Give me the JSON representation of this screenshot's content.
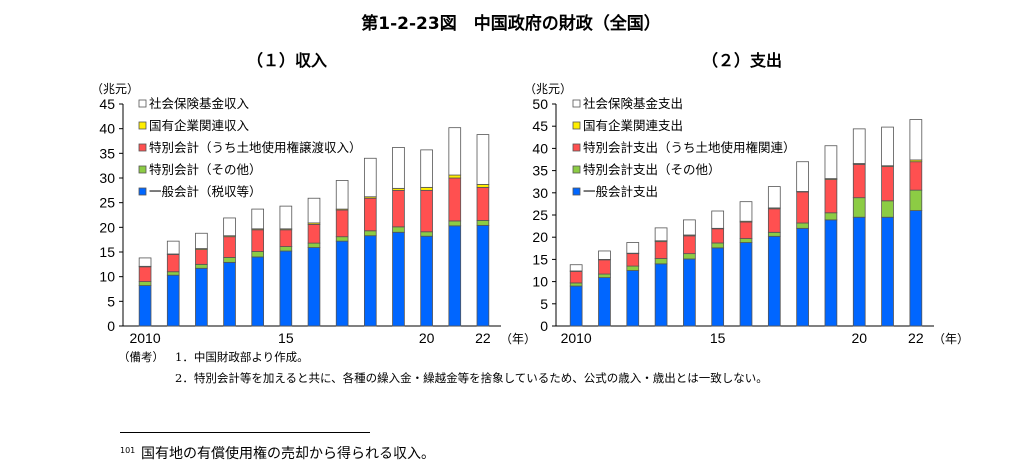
{
  "title": "第1-2-23図　中国政府の財政（全国）",
  "notes": {
    "label": "（備考）",
    "items": [
      "1．中国財政部より作成。",
      "2．特別会計等を加えると共に、各種の繰入金・繰越金等を捨象しているため、公式の歳入・歳出とは一致しない。"
    ]
  },
  "footnote": {
    "number": "101",
    "text": "国有地の有償使用権の売却から得られる収入。"
  },
  "chart_data": [
    {
      "type": "bar",
      "stacked": true,
      "title": "（１）収入",
      "ylabel": "（兆元）",
      "xlabel": "（年）",
      "ylim": [
        0,
        45
      ],
      "yticks": [
        0,
        5,
        10,
        15,
        20,
        25,
        30,
        35,
        40,
        45
      ],
      "categories": [
        "2010",
        "2011",
        "2012",
        "2013",
        "2014",
        "2015",
        "2016",
        "2017",
        "2018",
        "2019",
        "2020",
        "2021",
        "2022"
      ],
      "xtick_labels": {
        "0": "2010",
        "5": "15",
        "10": "20",
        "12": "22"
      },
      "legend_position": "top-left",
      "series": [
        {
          "name": "一般会計（税収等）",
          "color": "#0066ff",
          "values": [
            8.2,
            10.3,
            11.7,
            12.9,
            14.0,
            15.2,
            15.9,
            17.2,
            18.3,
            19.0,
            18.2,
            20.3,
            20.4
          ]
        },
        {
          "name": "特別会計（その他）",
          "color": "#8ccc44",
          "values": [
            0.8,
            0.7,
            0.8,
            1.0,
            1.1,
            0.9,
            0.9,
            0.9,
            1.0,
            1.1,
            0.9,
            1.0,
            1.0
          ]
        },
        {
          "name": "特別会計（うち土地使用権譲渡収入）",
          "color": "#ff5050",
          "values": [
            3.0,
            3.5,
            3.0,
            4.2,
            4.4,
            3.4,
            3.8,
            5.4,
            6.6,
            7.4,
            8.4,
            8.7,
            6.7
          ]
        },
        {
          "name": "国有企業関連収入",
          "color": "#ffee00",
          "values": [
            0.1,
            0.1,
            0.2,
            0.2,
            0.2,
            0.2,
            0.3,
            0.2,
            0.3,
            0.4,
            0.6,
            0.6,
            0.6
          ]
        },
        {
          "name": "社会保険基金収入",
          "color": "#ffffff",
          "values": [
            1.7,
            2.6,
            3.1,
            3.6,
            4.0,
            4.6,
            5.0,
            5.8,
            7.8,
            8.3,
            7.6,
            9.6,
            10.1
          ]
        }
      ]
    },
    {
      "type": "bar",
      "stacked": true,
      "title": "（２）支出",
      "ylabel": "（兆元）",
      "xlabel": "（年）",
      "ylim": [
        0,
        50
      ],
      "yticks": [
        0,
        5,
        10,
        15,
        20,
        25,
        30,
        35,
        40,
        45,
        50
      ],
      "categories": [
        "2010",
        "2011",
        "2012",
        "2013",
        "2014",
        "2015",
        "2016",
        "2017",
        "2018",
        "2019",
        "2020",
        "2021",
        "2022"
      ],
      "xtick_labels": {
        "0": "2010",
        "5": "15",
        "10": "20",
        "12": "22"
      },
      "legend_position": "top-left",
      "series": [
        {
          "name": "一般会計支出",
          "color": "#0066ff",
          "values": [
            9.0,
            10.9,
            12.5,
            14.0,
            15.1,
            17.6,
            18.8,
            20.2,
            22.0,
            23.9,
            24.5,
            24.5,
            26.0
          ]
        },
        {
          "name": "特別会計支出（その他）",
          "color": "#8ccc44",
          "values": [
            0.7,
            0.8,
            1.0,
            1.2,
            1.2,
            1.1,
            0.9,
            0.9,
            1.2,
            1.6,
            4.4,
            3.7,
            4.6
          ]
        },
        {
          "name": "特別会計支出（うち土地使用権関連）",
          "color": "#ff5050",
          "values": [
            2.6,
            3.2,
            2.8,
            3.8,
            4.0,
            3.2,
            3.7,
            5.3,
            7.0,
            7.5,
            7.5,
            7.7,
            6.4
          ]
        },
        {
          "name": "国有企業関連支出",
          "color": "#ffee00",
          "values": [
            0.1,
            0.1,
            0.1,
            0.2,
            0.2,
            0.1,
            0.2,
            0.2,
            0.1,
            0.2,
            0.2,
            0.2,
            0.4
          ]
        },
        {
          "name": "社会保険基金支出",
          "color": "#ffffff",
          "values": [
            1.4,
            1.9,
            2.4,
            2.9,
            3.4,
            3.9,
            4.4,
            4.8,
            6.7,
            7.4,
            7.8,
            8.7,
            9.1
          ]
        }
      ]
    }
  ]
}
